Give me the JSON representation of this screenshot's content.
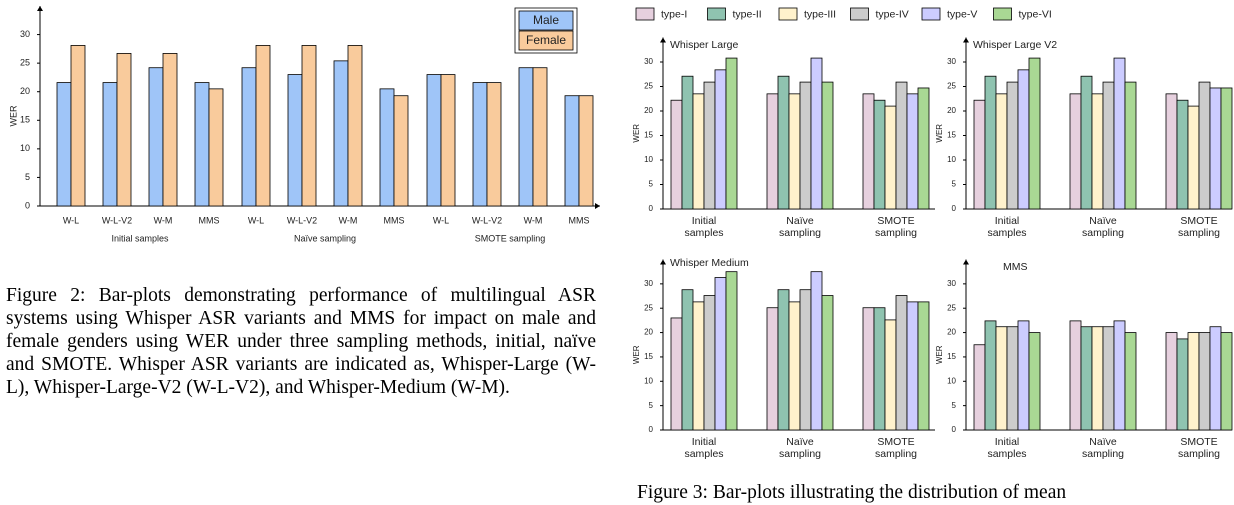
{
  "chart_data": [
    {
      "type": "bar",
      "ylabel": "WER",
      "categories": [
        "W-L",
        "W-L-V2",
        "W-M",
        "MMS",
        "W-L",
        "W-L-V2",
        "W-M",
        "MMS",
        "W-L",
        "W-L-V2",
        "W-M",
        "MMS"
      ],
      "group_labels": [
        "Initial samples",
        "Naïve sampling",
        "SMOTE sampling"
      ],
      "series": [
        {
          "name": "Male",
          "color": "#9fc5f8",
          "values": [
            21.6,
            21.6,
            24.2,
            21.6,
            24.2,
            23,
            25.4,
            20.5,
            23,
            21.6,
            24.2,
            19.3
          ]
        },
        {
          "name": "Female",
          "color": "#f9cb9c",
          "values": [
            28.1,
            26.7,
            26.7,
            20.5,
            28.1,
            28.1,
            28.1,
            19.3,
            23,
            21.6,
            24.2,
            19.3
          ]
        }
      ],
      "ylim": [
        0,
        35
      ],
      "yticks": [
        0,
        5,
        10,
        15,
        20,
        25,
        30
      ],
      "legend": "top-right"
    },
    {
      "type": "bar",
      "title": "Whisper Large",
      "ylabel": "WER",
      "categories": [
        "Initial samples",
        "Naïve sampling",
        "SMOTE sampling"
      ],
      "series": [
        {
          "name": "type-I",
          "color": "#e6d0de",
          "values": [
            22.2,
            23.5,
            23.5
          ]
        },
        {
          "name": "type-II",
          "color": "#8fc3b0",
          "values": [
            27.1,
            27.1,
            22.2
          ]
        },
        {
          "name": "type-III",
          "color": "#fff2cc",
          "values": [
            23.5,
            23.5,
            21
          ]
        },
        {
          "name": "type-IV",
          "color": "#cccccc",
          "values": [
            25.9,
            25.9,
            25.9
          ]
        },
        {
          "name": "type-V",
          "color": "#ccccff",
          "values": [
            28.4,
            30.8,
            23.5
          ]
        },
        {
          "name": "type-VI",
          "color": "#a9d894",
          "values": [
            30.8,
            25.9,
            24.7
          ]
        }
      ],
      "ylim": [
        0,
        35
      ],
      "yticks": [
        0,
        5,
        10,
        15,
        20,
        25,
        30
      ],
      "legend": "top"
    },
    {
      "type": "bar",
      "title": "Whisper Large V2",
      "ylabel": "WER",
      "categories": [
        "Initial samples",
        "Naïve sampling",
        "SMOTE sampling"
      ],
      "series": [
        {
          "color": "#e6d0de",
          "values": [
            22.2,
            23.5,
            23.5
          ]
        },
        {
          "color": "#8fc3b0",
          "values": [
            27.1,
            27.1,
            22.2
          ]
        },
        {
          "color": "#fff2cc",
          "values": [
            23.5,
            23.5,
            21
          ]
        },
        {
          "color": "#cccccc",
          "values": [
            25.9,
            25.9,
            25.9
          ]
        },
        {
          "color": "#ccccff",
          "values": [
            28.4,
            30.8,
            24.7
          ]
        },
        {
          "color": "#a9d894",
          "values": [
            30.8,
            25.9,
            24.7
          ]
        }
      ],
      "ylim": [
        0,
        35
      ],
      "yticks": [
        0,
        5,
        10,
        15,
        20,
        25,
        30
      ]
    },
    {
      "type": "bar",
      "title": "Whisper Medium",
      "ylabel": "WER",
      "categories": [
        "Initial samples",
        "Naïve sampling",
        "SMOTE sampling"
      ],
      "series": [
        {
          "color": "#e6d0de",
          "values": [
            23,
            25.1,
            25.1
          ]
        },
        {
          "color": "#8fc3b0",
          "values": [
            28.8,
            28.8,
            25.1
          ]
        },
        {
          "color": "#fff2cc",
          "values": [
            26.3,
            26.3,
            22.6
          ]
        },
        {
          "color": "#cccccc",
          "values": [
            27.6,
            28.8,
            27.6
          ]
        },
        {
          "color": "#ccccff",
          "values": [
            31.3,
            32.5,
            26.3
          ]
        },
        {
          "color": "#a9d894",
          "values": [
            32.5,
            27.6,
            26.3
          ]
        }
      ],
      "ylim": [
        0,
        35
      ],
      "yticks": [
        0,
        5,
        10,
        15,
        20,
        25,
        30
      ]
    },
    {
      "type": "bar",
      "title": "MMS",
      "ylabel": "WER",
      "categories": [
        "Initial samples",
        "Naïve sampling",
        "SMOTE sampling"
      ],
      "series": [
        {
          "color": "#e6d0de",
          "values": [
            17.5,
            22.4,
            20
          ]
        },
        {
          "color": "#8fc3b0",
          "values": [
            22.4,
            21.2,
            18.7
          ]
        },
        {
          "color": "#fff2cc",
          "values": [
            21.2,
            21.2,
            20
          ]
        },
        {
          "color": "#cccccc",
          "values": [
            21.2,
            21.2,
            20
          ]
        },
        {
          "color": "#ccccff",
          "values": [
            22.4,
            22.4,
            21.2
          ]
        },
        {
          "color": "#a9d894",
          "values": [
            20,
            20,
            20
          ]
        }
      ],
      "ylim": [
        0,
        35
      ],
      "yticks": [
        0,
        5,
        10,
        15,
        20,
        25,
        30
      ]
    }
  ],
  "figure_2_caption": "Figure 2: Bar-plots demonstrating performance of multilingual ASR systems using Whisper ASR variants and MMS for impact on male and female genders using WER under three sampling methods, initial, naïve and SMOTE. Whisper ASR variants are indicated as, Whisper-Large (W-L), Whisper-Large-V2 (W-L-V2), and Whisper-Medium (W-M).",
  "figure_3_caption": "Figure 3: Bar-plots illustrating the distribution of mean"
}
